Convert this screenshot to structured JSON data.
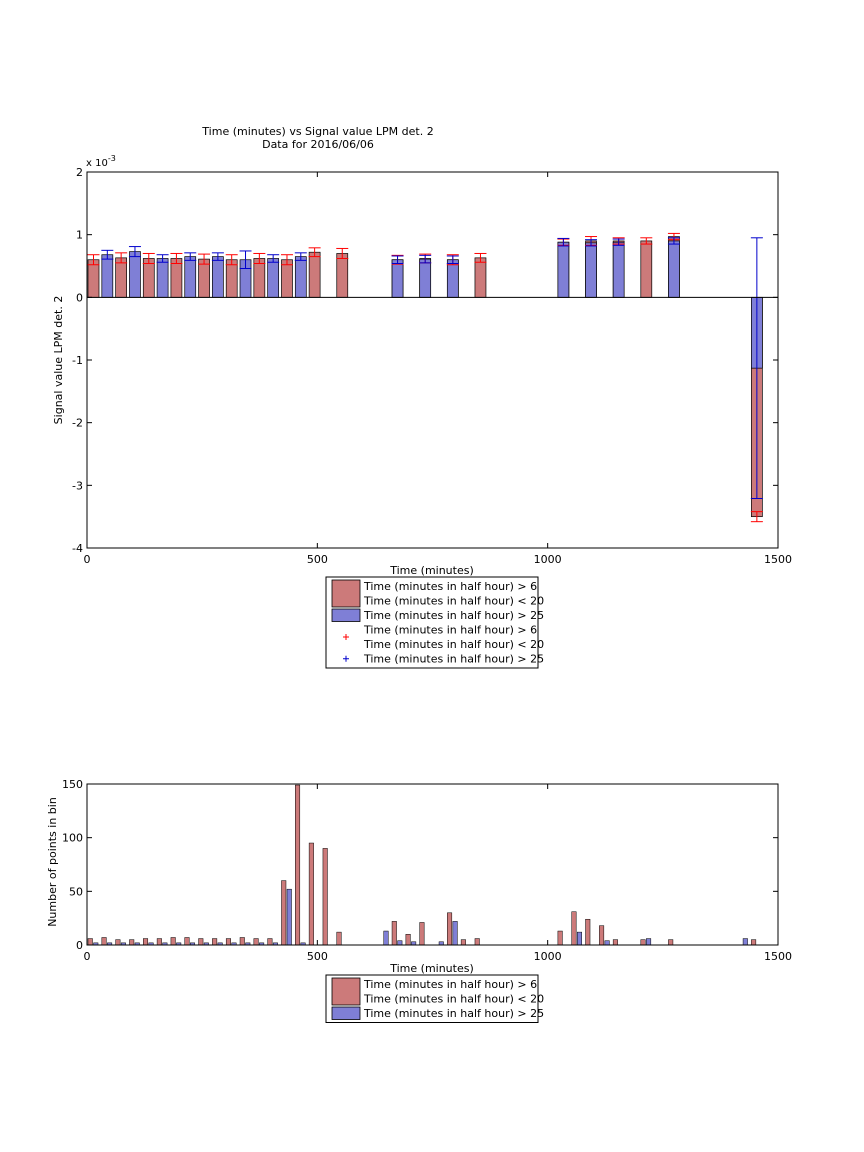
{
  "colors": {
    "red_bar": "#cc7a7a",
    "blue_bar": "#7f7fd6",
    "red_err": "#ff0000",
    "blue_err": "#0000cc",
    "axis": "#000000"
  },
  "chart_data": [
    {
      "type": "bar",
      "title": "Time (minutes) vs Signal value LPM det. 2",
      "subtitle": "Data for 2016/06/06",
      "xlabel": "Time (minutes)",
      "ylabel": "Signal value LPM det. 2",
      "y_exponent_label": "x 10",
      "y_exponent_power": "-3",
      "xlim": [
        0,
        1500
      ],
      "ylim": [
        -4,
        2
      ],
      "xticks": [
        0,
        500,
        1000,
        1500
      ],
      "yticks": [
        -4,
        -3,
        -2,
        -1,
        0,
        1,
        2
      ],
      "legend": [
        {
          "kind": "bar",
          "color": "red_bar",
          "lines": [
            "Time (minutes in half hour) > 6",
            "Time (minutes in half hour) < 20"
          ]
        },
        {
          "kind": "bar",
          "color": "blue_bar",
          "lines": [
            "Time (minutes in half hour) > 25"
          ]
        },
        {
          "kind": "marker",
          "color": "red_err",
          "lines": [
            "Time (minutes in half hour) > 6",
            "Time (minutes in half hour) < 20"
          ]
        },
        {
          "kind": "marker",
          "color": "blue_err",
          "lines": [
            "Time (minutes in half hour) > 25"
          ]
        }
      ],
      "series": [
        {
          "color": "red_bar",
          "err_color": "red_err",
          "x": [
            0,
            60,
            120,
            180,
            240,
            300,
            360,
            420,
            480,
            540,
            660,
            720,
            780,
            840,
            1020,
            1080,
            1140,
            1200,
            1260,
            1440
          ],
          "y": [
            0.6,
            0.63,
            0.62,
            0.62,
            0.61,
            0.6,
            0.62,
            0.6,
            0.72,
            0.7,
            0.6,
            0.62,
            0.6,
            0.63,
            0.88,
            0.9,
            0.9,
            0.9,
            0.97,
            -3.5
          ],
          "err": [
            0.08,
            0.08,
            0.08,
            0.08,
            0.08,
            0.08,
            0.08,
            0.08,
            0.07,
            0.08,
            0.07,
            0.07,
            0.08,
            0.07,
            0.05,
            0.07,
            0.05,
            0.05,
            0.05,
            0.08
          ]
        },
        {
          "color": "blue_bar",
          "err_color": "blue_err",
          "x": [
            30,
            90,
            150,
            210,
            270,
            330,
            390,
            450,
            660,
            720,
            780,
            1020,
            1080,
            1140,
            1260,
            1440
          ],
          "y": [
            0.68,
            0.73,
            0.62,
            0.65,
            0.65,
            0.6,
            0.62,
            0.65,
            0.6,
            0.61,
            0.6,
            0.88,
            0.87,
            0.88,
            0.9,
            -1.13
          ],
          "err": [
            0.07,
            0.08,
            0.06,
            0.06,
            0.06,
            0.14,
            0.06,
            0.06,
            0.06,
            0.06,
            0.06,
            0.06,
            0.05,
            0.05,
            0.05,
            2.08
          ]
        }
      ]
    },
    {
      "type": "bar",
      "xlabel": "Time (minutes)",
      "ylabel": "Number of points in bin",
      "xlim": [
        0,
        1500
      ],
      "ylim": [
        0,
        150
      ],
      "xticks": [
        0,
        500,
        1000,
        1500
      ],
      "yticks": [
        0,
        50,
        100,
        150
      ],
      "legend": [
        {
          "kind": "bar",
          "color": "red_bar",
          "lines": [
            "Time (minutes in half hour) > 6",
            "Time (minutes in half hour) < 20"
          ]
        },
        {
          "kind": "bar",
          "color": "blue_bar",
          "lines": [
            "Time (minutes in half hour) > 25"
          ]
        }
      ],
      "series": [
        {
          "color": "red_bar",
          "x": [
            0,
            30,
            60,
            90,
            120,
            150,
            180,
            210,
            240,
            270,
            300,
            330,
            360,
            390,
            420,
            450,
            480,
            510,
            540,
            660,
            690,
            720,
            780,
            810,
            840,
            1020,
            1050,
            1080,
            1110,
            1140,
            1200,
            1260,
            1440
          ],
          "y": [
            6,
            7,
            5,
            5,
            6,
            6,
            7,
            7,
            6,
            6,
            6,
            7,
            6,
            6,
            60,
            149,
            95,
            90,
            12,
            22,
            10,
            21,
            30,
            5,
            6,
            13,
            31,
            24,
            18,
            5,
            5,
            5,
            5
          ]
        },
        {
          "color": "blue_bar",
          "x": [
            12,
            42,
            72,
            102,
            132,
            162,
            192,
            222,
            252,
            282,
            312,
            342,
            372,
            402,
            432,
            462,
            642,
            672,
            702,
            762,
            792,
            1062,
            1122,
            1212,
            1422
          ],
          "y": [
            2,
            2,
            2,
            2,
            2,
            2,
            2,
            2,
            2,
            2,
            2,
            2,
            2,
            2,
            52,
            2,
            13,
            4,
            3,
            3,
            22,
            12,
            4,
            6,
            6
          ]
        }
      ]
    }
  ]
}
